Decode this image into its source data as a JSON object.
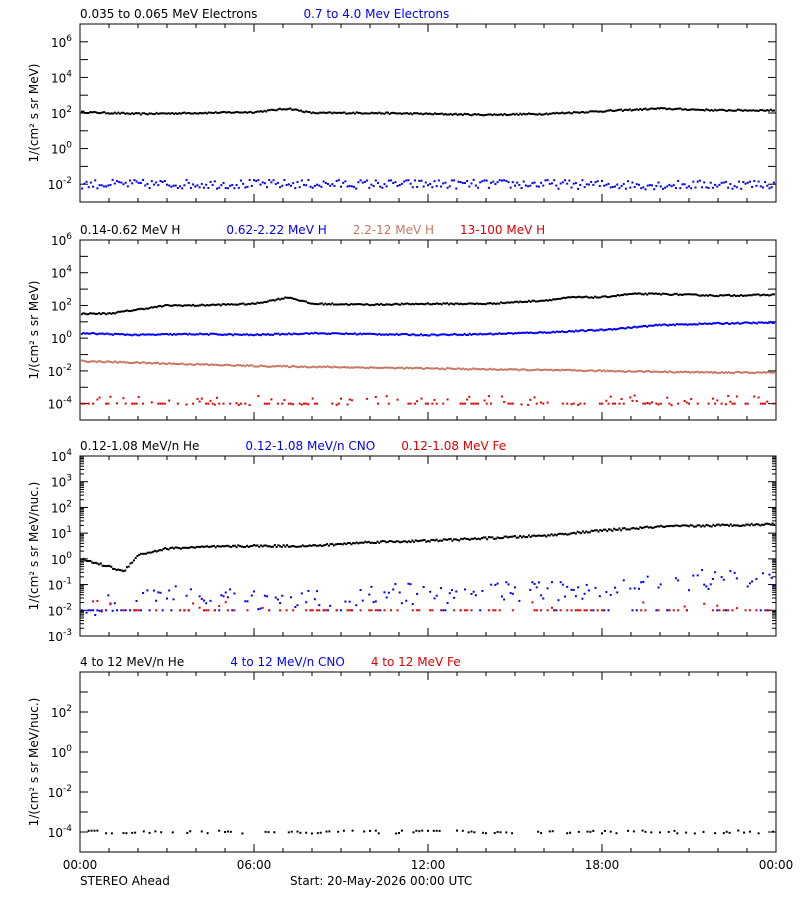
{
  "panels": [
    {
      "id": "electrons",
      "ylabel": "1/(cm² s sr MeV)",
      "ylog_range": [
        -3.0,
        7.0
      ],
      "tick_exponents": [
        -2,
        0,
        2,
        4,
        6
      ],
      "legend": [
        {
          "text": "0.035 to 0.065 MeV Electrons",
          "color": "#000000"
        },
        {
          "text": "0.7 to 4.0 Mev Electrons",
          "color": "#0000ff"
        }
      ]
    },
    {
      "id": "protons",
      "ylabel": "1/(cm² s sr MeV)",
      "ylog_range": [
        -5.0,
        6.0
      ],
      "tick_exponents": [
        -4,
        -2,
        0,
        2,
        4,
        6
      ],
      "legend": [
        {
          "text": "0.14-0.62 MeV H",
          "color": "#000000"
        },
        {
          "text": "0.62-2.22 MeV H",
          "color": "#0000ff"
        },
        {
          "text": "2.2-12 MeV H",
          "color": "#c87860"
        },
        {
          "text": "13-100 MeV H",
          "color": "#e00000"
        }
      ]
    },
    {
      "id": "heavy-low",
      "ylabel": "1/(cm² s sr MeV/nuc.)",
      "ylog_range": [
        -3.0,
        4.0
      ],
      "tick_exponents": [
        -3,
        -2,
        -1,
        0,
        1,
        2,
        3,
        4
      ],
      "legend": [
        {
          "text": "0.12-1.08 MeV/n He",
          "color": "#000000"
        },
        {
          "text": "0.12-1.08 MeV/n CNO",
          "color": "#0000ff"
        },
        {
          "text": "0.12-1.08 MeV Fe",
          "color": "#e00000"
        }
      ]
    },
    {
      "id": "heavy-high",
      "ylabel": "1/(cm² s sr MeV/nuc.)",
      "ylog_range": [
        -5.0,
        4.0
      ],
      "tick_exponents": [
        -4,
        -2,
        0,
        2
      ],
      "legend": [
        {
          "text": "4 to 12 MeV/n He",
          "color": "#000000"
        },
        {
          "text": "4 to 12 MeV/n CNO",
          "color": "#0000ff"
        },
        {
          "text": "4 to 12 MeV Fe",
          "color": "#e00000"
        }
      ]
    }
  ],
  "xticks": [
    "00:00",
    "06:00",
    "12:00",
    "18:00",
    "00:00"
  ],
  "footer": {
    "spacecraft": "STEREO Ahead",
    "start": "Start: 20-May-2026 00:00 UTC"
  },
  "chart_data": [
    {
      "type": "scatter",
      "x_range_hours": [
        0,
        24
      ],
      "series": [
        {
          "name": "0.035 to 0.065 MeV Electrons",
          "color": "#000000",
          "x": [
            0,
            2,
            4,
            6,
            7.2,
            8,
            10,
            12,
            14,
            16,
            18,
            20,
            22,
            24
          ],
          "log10_y": [
            2.05,
            1.95,
            2.0,
            2.05,
            2.25,
            2.0,
            2.0,
            1.95,
            1.9,
            1.95,
            2.1,
            2.25,
            2.15,
            2.15
          ]
        },
        {
          "name": "0.7 to 4.0 Mev Electrons",
          "color": "#0000ff",
          "x": [
            0,
            4,
            8,
            12,
            16,
            20,
            24
          ],
          "log10_y": [
            -2.0,
            -2.0,
            -2.0,
            -2.0,
            -2.0,
            -2.05,
            -2.0
          ]
        }
      ]
    },
    {
      "type": "scatter",
      "x_range_hours": [
        0,
        24
      ],
      "series": [
        {
          "name": "0.14-0.62 MeV H",
          "color": "#000000",
          "x": [
            0,
            1,
            2,
            3,
            4,
            6,
            7.2,
            8,
            10,
            12,
            14,
            16,
            17,
            18,
            19,
            20,
            22,
            24
          ],
          "log10_y": [
            1.5,
            1.5,
            1.75,
            2.0,
            2.0,
            2.1,
            2.5,
            2.1,
            2.05,
            2.1,
            2.1,
            2.3,
            2.5,
            2.5,
            2.7,
            2.7,
            2.6,
            2.65
          ]
        },
        {
          "name": "0.62-2.22 MeV H",
          "color": "#0000ff",
          "x": [
            0,
            2,
            4,
            6,
            8,
            10,
            12,
            14,
            16,
            18,
            20,
            22,
            24
          ],
          "log10_y": [
            0.3,
            0.2,
            0.25,
            0.2,
            0.3,
            0.25,
            0.2,
            0.25,
            0.35,
            0.5,
            0.8,
            0.9,
            0.95
          ]
        },
        {
          "name": "2.2-12 MeV H",
          "color": "#c87860",
          "x": [
            0,
            2,
            4,
            6,
            8,
            10,
            12,
            14,
            16,
            18,
            20,
            22,
            24
          ],
          "log10_y": [
            -1.4,
            -1.5,
            -1.6,
            -1.7,
            -1.75,
            -1.8,
            -1.85,
            -1.9,
            -1.95,
            -2.0,
            -2.05,
            -2.1,
            -2.1
          ]
        },
        {
          "name": "13-100 MeV H",
          "color": "#e00000",
          "x": [
            0,
            6,
            12,
            18,
            24
          ],
          "log10_y": [
            -4.0,
            -4.0,
            -4.0,
            -4.0,
            -4.0
          ]
        }
      ]
    },
    {
      "type": "scatter",
      "x_range_hours": [
        0,
        24
      ],
      "series": [
        {
          "name": "0.12-1.08 MeV/n He",
          "color": "#000000",
          "x": [
            0,
            1,
            1.5,
            2,
            3,
            4,
            6,
            8,
            10,
            12,
            14,
            16,
            18,
            20,
            22,
            24
          ],
          "log10_y": [
            0.0,
            -0.3,
            -0.5,
            0.15,
            0.4,
            0.45,
            0.5,
            0.5,
            0.65,
            0.7,
            0.8,
            0.9,
            1.1,
            1.25,
            1.3,
            1.35
          ]
        },
        {
          "name": "0.12-1.08 MeV/n CNO",
          "color": "#0000ff",
          "x": [
            0,
            2,
            4,
            6,
            8,
            10,
            12,
            14,
            16,
            18,
            20,
            22,
            24
          ],
          "log10_y": [
            -2.0,
            -1.5,
            -1.4,
            -1.6,
            -1.5,
            -1.4,
            -1.35,
            -1.3,
            -1.25,
            -1.1,
            -0.9,
            -0.8,
            -0.8
          ]
        },
        {
          "name": "0.12-1.08 MeV Fe",
          "color": "#e00000",
          "x": [
            0,
            6,
            12,
            18,
            24
          ],
          "log10_y": [
            -2.0,
            -2.0,
            -2.0,
            -2.0,
            -2.0
          ]
        }
      ]
    },
    {
      "type": "scatter",
      "x_range_hours": [
        0,
        24
      ],
      "series": [
        {
          "name": "4 to 12 MeV/n He",
          "color": "#000000",
          "x": [
            0,
            6,
            12,
            18,
            24
          ],
          "log10_y": [
            -4.0,
            -4.0,
            -4.0,
            -4.0,
            -4.0
          ]
        }
      ]
    }
  ]
}
